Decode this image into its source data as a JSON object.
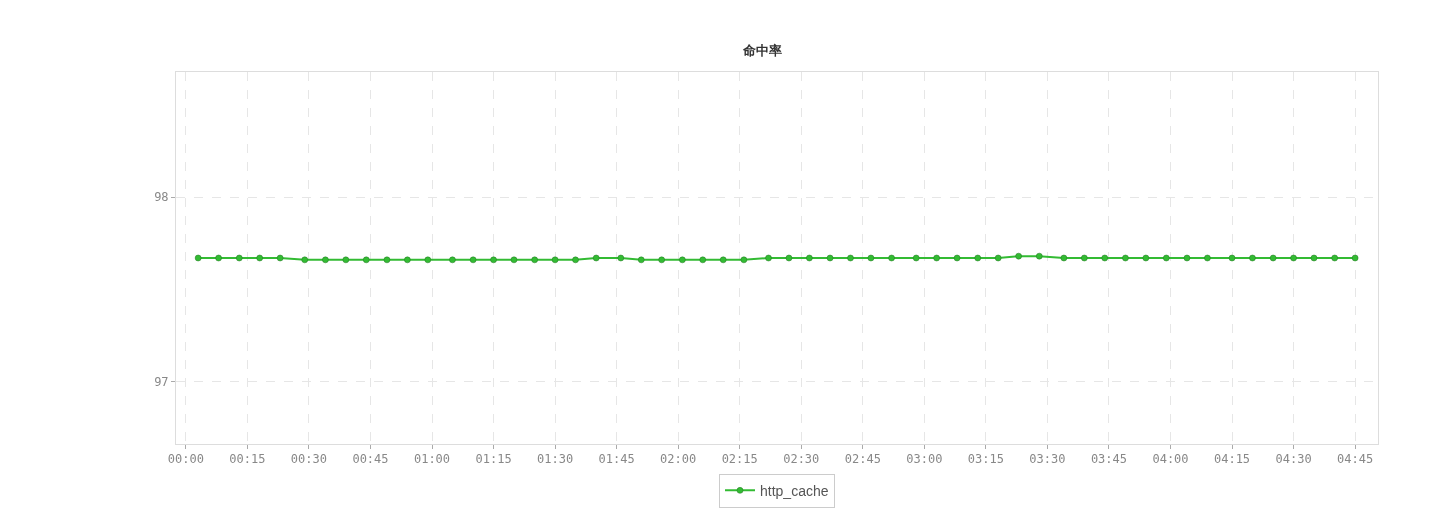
{
  "chart_data": {
    "type": "line",
    "title": "命中率",
    "x": [
      0.05,
      0.133,
      0.217,
      0.3,
      0.383,
      0.483,
      0.567,
      0.65,
      0.733,
      0.817,
      0.9,
      0.983,
      1.083,
      1.167,
      1.25,
      1.333,
      1.417,
      1.5,
      1.583,
      1.667,
      1.767,
      1.85,
      1.933,
      2.017,
      2.1,
      2.183,
      2.267,
      2.367,
      2.45,
      2.533,
      2.617,
      2.7,
      2.783,
      2.867,
      2.967,
      3.05,
      3.133,
      3.217,
      3.3,
      3.383,
      3.467,
      3.567,
      3.65,
      3.733,
      3.817,
      3.9,
      3.983,
      4.067,
      4.15,
      4.25,
      4.333,
      4.417,
      4.5,
      4.583,
      4.667,
      4.75
    ],
    "series": [
      {
        "name": "http_cache",
        "color": "#33bb33",
        "values": [
          97.67,
          97.67,
          97.67,
          97.67,
          97.67,
          97.66,
          97.66,
          97.66,
          97.66,
          97.66,
          97.66,
          97.66,
          97.66,
          97.66,
          97.66,
          97.66,
          97.66,
          97.66,
          97.66,
          97.67,
          97.67,
          97.66,
          97.66,
          97.66,
          97.66,
          97.66,
          97.66,
          97.67,
          97.67,
          97.67,
          97.67,
          97.67,
          97.67,
          97.67,
          97.67,
          97.67,
          97.67,
          97.67,
          97.67,
          97.68,
          97.68,
          97.67,
          97.67,
          97.67,
          97.67,
          97.67,
          97.67,
          97.67,
          97.67,
          97.67,
          97.67,
          97.67,
          97.67,
          97.67,
          97.67,
          97.67
        ]
      }
    ],
    "xlim": [
      -0.04,
      4.843
    ],
    "xticks": [
      {
        "value": 0,
        "label": "00:00"
      },
      {
        "value": 0.25,
        "label": "00:15"
      },
      {
        "value": 0.5,
        "label": "00:30"
      },
      {
        "value": 0.75,
        "label": "00:45"
      },
      {
        "value": 1,
        "label": "01:00"
      },
      {
        "value": 1.25,
        "label": "01:15"
      },
      {
        "value": 1.5,
        "label": "01:30"
      },
      {
        "value": 1.75,
        "label": "01:45"
      },
      {
        "value": 2,
        "label": "02:00"
      },
      {
        "value": 2.25,
        "label": "02:15"
      },
      {
        "value": 2.5,
        "label": "02:30"
      },
      {
        "value": 2.75,
        "label": "02:45"
      },
      {
        "value": 3,
        "label": "03:00"
      },
      {
        "value": 3.25,
        "label": "03:15"
      },
      {
        "value": 3.5,
        "label": "03:30"
      },
      {
        "value": 3.75,
        "label": "03:45"
      },
      {
        "value": 4,
        "label": "04:00"
      },
      {
        "value": 4.25,
        "label": "04:15"
      },
      {
        "value": 4.5,
        "label": "04:30"
      },
      {
        "value": 4.75,
        "label": "04:45"
      }
    ],
    "ylim": [
      96.66,
      98.68
    ],
    "yticks": [
      97,
      98
    ],
    "grid": true,
    "legend": "bottom",
    "marker": "circle",
    "line_style": "solid"
  }
}
